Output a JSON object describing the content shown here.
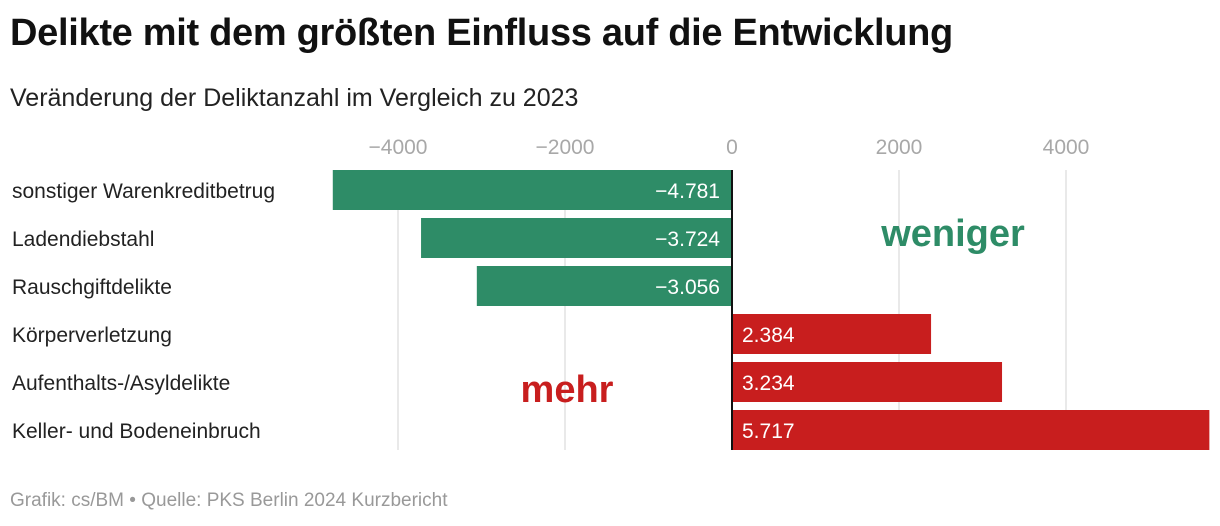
{
  "title": "Delikte mit dem größten Einfluss auf die Entwicklung",
  "subtitle": "Veränderung der Deliktanzahl im Vergleich zu 2023",
  "footer": "Grafik: cs/BM • Quelle: PKS Berlin 2024 Kurzbericht",
  "colors": {
    "negative": "#2e8c67",
    "positive": "#c81e1e"
  },
  "chart_data": {
    "type": "bar",
    "orientation": "horizontal",
    "categories": [
      "sonstiger Warenkreditbetrug",
      "Ladendiebstahl",
      "Rauschgiftdelikte",
      "Körperverletzung",
      "Aufenthalts-/Asyldelikte",
      "Keller- und Bodeneinbruch"
    ],
    "values": [
      -4781,
      -3724,
      -3056,
      2384,
      3234,
      5717
    ],
    "value_labels": [
      "−4.781",
      "−3.724",
      "−3.056",
      "2.384",
      "3.234",
      "5.717"
    ],
    "xticks": [
      -4000,
      -2000,
      0,
      2000,
      4000
    ],
    "xtick_labels": [
      "−4000",
      "−2000",
      "0",
      "2000",
      "4000"
    ],
    "xlim": [
      -4800,
      5720
    ],
    "grid": true,
    "annotations": [
      {
        "text": "weniger",
        "color": "#2e8c67"
      },
      {
        "text": "mehr",
        "color": "#c81e1e"
      }
    ]
  }
}
